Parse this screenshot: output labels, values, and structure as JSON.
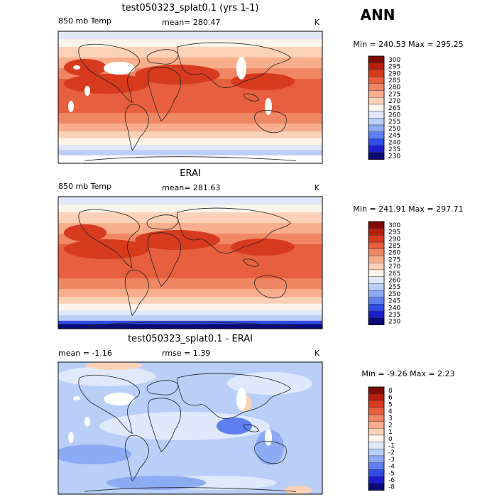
{
  "page_title": "ANN",
  "colors": {
    "abs_scale": [
      "#0a0a75",
      "#1c1ccd",
      "#2f4de6",
      "#5d7ff0",
      "#8dabf4",
      "#b9cff8",
      "#dfe9fb",
      "#fbf4ea",
      "#fbd2b7",
      "#f8ae8c",
      "#f08764",
      "#e75f3e",
      "#d83a1d",
      "#b51f0c",
      "#7e0b04"
    ],
    "diff_scale": [
      "#0a0a75",
      "#1c1ccd",
      "#2f4de6",
      "#5d7ff0",
      "#8dabf4",
      "#b9cff8",
      "#dfe9fb",
      "#fbf4ea",
      "#fbd2b7",
      "#f8ae8c",
      "#f08764",
      "#e75f3e",
      "#d83a1d",
      "#b51f0c",
      "#7e0b04"
    ],
    "land": "#ffffff",
    "coast": "#222222"
  },
  "chart_data": [
    {
      "type": "heatmap",
      "title": "test050323_splat0.1 (yrs 1-1)",
      "variable_label": "850 mb Temp",
      "mean_text": "mean= 280.47",
      "units": "K",
      "minmax_text": "Min = 240.53  Max = 295.25",
      "colorbar_levels": [
        "300",
        "295",
        "290",
        "285",
        "280",
        "275",
        "270",
        "265",
        "260",
        "255",
        "250",
        "245",
        "240",
        "235",
        "230"
      ],
      "min": 240.53,
      "max": 295.25,
      "mean": 280.47,
      "masked_high_terrain": true
    },
    {
      "type": "heatmap",
      "title": "ERAI",
      "variable_label": "850 mb Temp",
      "mean_text": "mean= 281.63",
      "units": "K",
      "minmax_text": "Min = 241.91  Max = 297.71",
      "colorbar_levels": [
        "300",
        "295",
        "290",
        "285",
        "280",
        "275",
        "270",
        "265",
        "260",
        "255",
        "250",
        "245",
        "240",
        "235",
        "230"
      ],
      "min": 241.91,
      "max": 297.71,
      "mean": 281.63,
      "masked_high_terrain": false
    },
    {
      "type": "heatmap",
      "title": "test050323_splat0.1 - ERAI",
      "variable_label": "",
      "mean_text": "mean =   -1.16",
      "rmse_text": "rmse =    1.39",
      "units": "K",
      "minmax_text": "Min =  -9.26  Max =    2.23",
      "colorbar_levels": [
        "8",
        "6",
        "5",
        "4",
        "3",
        "2",
        "1",
        "0",
        "-1",
        "-2",
        "-3",
        "-4",
        "-5",
        "-6",
        "-8"
      ],
      "min": -9.26,
      "max": 2.23,
      "mean": -1.16,
      "rmse": 1.39,
      "masked_high_terrain": true
    }
  ]
}
